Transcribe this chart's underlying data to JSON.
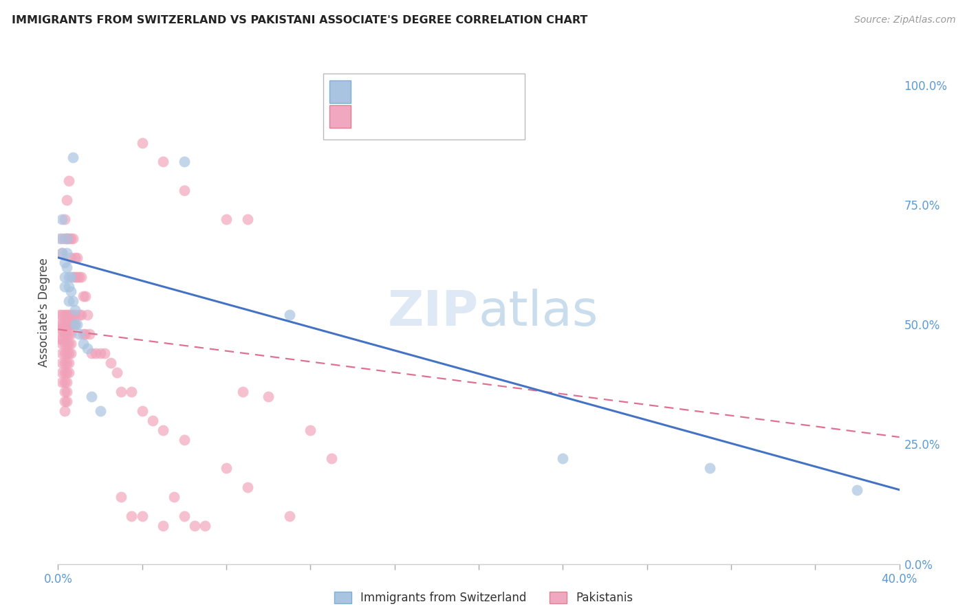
{
  "title": "IMMIGRANTS FROM SWITZERLAND VS PAKISTANI ASSOCIATE'S DEGREE CORRELATION CHART",
  "source": "Source: ZipAtlas.com",
  "ylabel": "Associate's Degree",
  "right_yticks": [
    0.0,
    0.25,
    0.5,
    0.75,
    1.0
  ],
  "right_yticklabels": [
    "0.0%",
    "25.0%",
    "50.0%",
    "75.0%",
    "100.0%"
  ],
  "legend_label1": "Immigrants from Switzerland",
  "legend_label2": "Pakistanis",
  "swiss_color": "#a8c4e0",
  "pak_color": "#f0a0b8",
  "swiss_line_color": "#4472c4",
  "pak_line_color": "#e07090",
  "background": "#ffffff",
  "xmin": 0.0,
  "xmax": 0.4,
  "ymin": 0.0,
  "ymax": 1.05,
  "swiss_line_y0": 0.64,
  "swiss_line_y1": 0.155,
  "pak_line_y0": 0.49,
  "pak_line_y1": 0.265,
  "swiss_points": [
    [
      0.001,
      0.68
    ],
    [
      0.002,
      0.72
    ],
    [
      0.002,
      0.65
    ],
    [
      0.003,
      0.63
    ],
    [
      0.003,
      0.6
    ],
    [
      0.003,
      0.58
    ],
    [
      0.004,
      0.68
    ],
    [
      0.004,
      0.65
    ],
    [
      0.004,
      0.62
    ],
    [
      0.005,
      0.6
    ],
    [
      0.005,
      0.58
    ],
    [
      0.005,
      0.55
    ],
    [
      0.006,
      0.6
    ],
    [
      0.006,
      0.57
    ],
    [
      0.007,
      0.55
    ],
    [
      0.007,
      0.85
    ],
    [
      0.008,
      0.53
    ],
    [
      0.008,
      0.5
    ],
    [
      0.009,
      0.5
    ],
    [
      0.01,
      0.48
    ],
    [
      0.012,
      0.46
    ],
    [
      0.014,
      0.45
    ],
    [
      0.016,
      0.35
    ],
    [
      0.02,
      0.32
    ],
    [
      0.06,
      0.84
    ],
    [
      0.11,
      0.52
    ],
    [
      0.24,
      0.22
    ],
    [
      0.31,
      0.2
    ],
    [
      0.38,
      0.155
    ]
  ],
  "pak_points": [
    [
      0.001,
      0.52
    ],
    [
      0.001,
      0.5
    ],
    [
      0.001,
      0.49
    ],
    [
      0.001,
      0.47
    ],
    [
      0.002,
      0.68
    ],
    [
      0.002,
      0.65
    ],
    [
      0.002,
      0.52
    ],
    [
      0.002,
      0.5
    ],
    [
      0.002,
      0.49
    ],
    [
      0.002,
      0.47
    ],
    [
      0.002,
      0.46
    ],
    [
      0.002,
      0.44
    ],
    [
      0.002,
      0.42
    ],
    [
      0.002,
      0.4
    ],
    [
      0.002,
      0.38
    ],
    [
      0.003,
      0.72
    ],
    [
      0.003,
      0.68
    ],
    [
      0.003,
      0.52
    ],
    [
      0.003,
      0.5
    ],
    [
      0.003,
      0.48
    ],
    [
      0.003,
      0.46
    ],
    [
      0.003,
      0.44
    ],
    [
      0.003,
      0.42
    ],
    [
      0.003,
      0.4
    ],
    [
      0.003,
      0.38
    ],
    [
      0.003,
      0.36
    ],
    [
      0.003,
      0.34
    ],
    [
      0.003,
      0.32
    ],
    [
      0.004,
      0.76
    ],
    [
      0.004,
      0.68
    ],
    [
      0.004,
      0.52
    ],
    [
      0.004,
      0.5
    ],
    [
      0.004,
      0.48
    ],
    [
      0.004,
      0.46
    ],
    [
      0.004,
      0.44
    ],
    [
      0.004,
      0.42
    ],
    [
      0.004,
      0.4
    ],
    [
      0.004,
      0.38
    ],
    [
      0.004,
      0.36
    ],
    [
      0.004,
      0.34
    ],
    [
      0.005,
      0.8
    ],
    [
      0.005,
      0.68
    ],
    [
      0.005,
      0.52
    ],
    [
      0.005,
      0.5
    ],
    [
      0.005,
      0.48
    ],
    [
      0.005,
      0.46
    ],
    [
      0.005,
      0.44
    ],
    [
      0.005,
      0.42
    ],
    [
      0.005,
      0.4
    ],
    [
      0.006,
      0.68
    ],
    [
      0.006,
      0.64
    ],
    [
      0.006,
      0.52
    ],
    [
      0.006,
      0.5
    ],
    [
      0.006,
      0.48
    ],
    [
      0.006,
      0.46
    ],
    [
      0.006,
      0.44
    ],
    [
      0.007,
      0.68
    ],
    [
      0.007,
      0.6
    ],
    [
      0.007,
      0.52
    ],
    [
      0.007,
      0.5
    ],
    [
      0.008,
      0.64
    ],
    [
      0.008,
      0.6
    ],
    [
      0.008,
      0.52
    ],
    [
      0.008,
      0.5
    ],
    [
      0.009,
      0.64
    ],
    [
      0.009,
      0.6
    ],
    [
      0.01,
      0.6
    ],
    [
      0.01,
      0.52
    ],
    [
      0.011,
      0.6
    ],
    [
      0.011,
      0.52
    ],
    [
      0.012,
      0.56
    ],
    [
      0.012,
      0.48
    ],
    [
      0.013,
      0.56
    ],
    [
      0.013,
      0.48
    ],
    [
      0.014,
      0.52
    ],
    [
      0.015,
      0.48
    ],
    [
      0.016,
      0.44
    ],
    [
      0.018,
      0.44
    ],
    [
      0.02,
      0.44
    ],
    [
      0.022,
      0.44
    ],
    [
      0.025,
      0.42
    ],
    [
      0.028,
      0.4
    ],
    [
      0.03,
      0.36
    ],
    [
      0.035,
      0.36
    ],
    [
      0.04,
      0.32
    ],
    [
      0.04,
      0.88
    ],
    [
      0.045,
      0.3
    ],
    [
      0.05,
      0.84
    ],
    [
      0.05,
      0.28
    ],
    [
      0.055,
      0.14
    ],
    [
      0.06,
      0.78
    ],
    [
      0.06,
      0.26
    ],
    [
      0.065,
      0.08
    ],
    [
      0.07,
      0.08
    ],
    [
      0.08,
      0.72
    ],
    [
      0.08,
      0.2
    ],
    [
      0.088,
      0.36
    ],
    [
      0.09,
      0.72
    ],
    [
      0.09,
      0.16
    ],
    [
      0.1,
      0.35
    ],
    [
      0.11,
      0.1
    ],
    [
      0.12,
      0.28
    ],
    [
      0.13,
      0.22
    ],
    [
      0.05,
      0.08
    ],
    [
      0.06,
      0.1
    ],
    [
      0.03,
      0.14
    ],
    [
      0.035,
      0.1
    ],
    [
      0.04,
      0.1
    ]
  ]
}
